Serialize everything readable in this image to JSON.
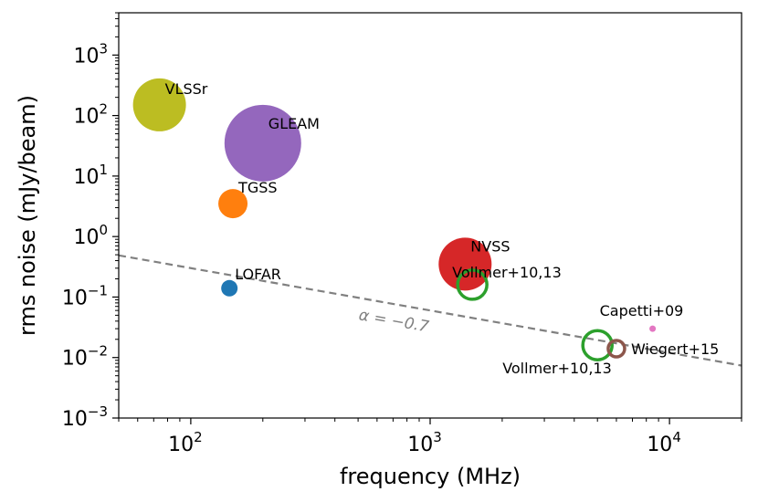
{
  "chart_data": {
    "type": "scatter",
    "xscale": "log",
    "yscale": "log",
    "xlim": [
      50,
      20000
    ],
    "ylim": [
      0.001,
      5000
    ],
    "xlabel": "frequency (MHz)",
    "ylabel": "rms noise (mJy/beam)",
    "x_ticks": [
      {
        "base": "10",
        "exp": "2",
        "value": 100
      },
      {
        "base": "10",
        "exp": "3",
        "value": 1000
      },
      {
        "base": "10",
        "exp": "4",
        "value": 10000
      }
    ],
    "y_ticks": [
      {
        "base": "10",
        "exp": "−3",
        "value": 0.001
      },
      {
        "base": "10",
        "exp": "−2",
        "value": 0.01
      },
      {
        "base": "10",
        "exp": "−1",
        "value": 0.1
      },
      {
        "base": "10",
        "exp": "0",
        "value": 1
      },
      {
        "base": "10",
        "exp": "1",
        "value": 10
      },
      {
        "base": "10",
        "exp": "2",
        "value": 100
      },
      {
        "base": "10",
        "exp": "3",
        "value": 1000
      }
    ],
    "points": [
      {
        "label": "VLSSr",
        "x": 74,
        "y": 150,
        "size": "large",
        "color": "#bcbd22",
        "filled": true
      },
      {
        "label": "GLEAM",
        "x": 200,
        "y": 35,
        "size": "xlarge",
        "color": "#9467bd",
        "filled": true
      },
      {
        "label": "TGSS",
        "x": 150,
        "y": 3.5,
        "size": "medium",
        "color": "#ff7f0e",
        "filled": true
      },
      {
        "label": "LOFAR",
        "x": 145,
        "y": 0.14,
        "size": "small",
        "color": "#1f77b4",
        "filled": true
      },
      {
        "label": "NVSS",
        "x": 1400,
        "y": 0.35,
        "size": "large",
        "color": "#d62728",
        "filled": true
      },
      {
        "label": "Vollmer+10,13",
        "x": 1500,
        "y": 0.16,
        "size": "medium",
        "color": "#2ca02c",
        "filled": false
      },
      {
        "label": "Capetti+09",
        "x": 8500,
        "y": 0.03,
        "size": "tiny",
        "color": "#e377c2",
        "filled": true
      },
      {
        "label": "Vollmer+10,13",
        "x": 5000,
        "y": 0.016,
        "size": "medium",
        "color": "#2ca02c",
        "filled": false
      },
      {
        "label": "Wiegert+15",
        "x": 6000,
        "y": 0.014,
        "size": "small",
        "color": "#8c564b",
        "filled": false
      }
    ],
    "reference_line": {
      "label": "α = −0.7",
      "slope": -0.7,
      "anchor_x": 1000,
      "anchor_y": 0.06,
      "style": "dashed",
      "color": "#808080"
    }
  }
}
